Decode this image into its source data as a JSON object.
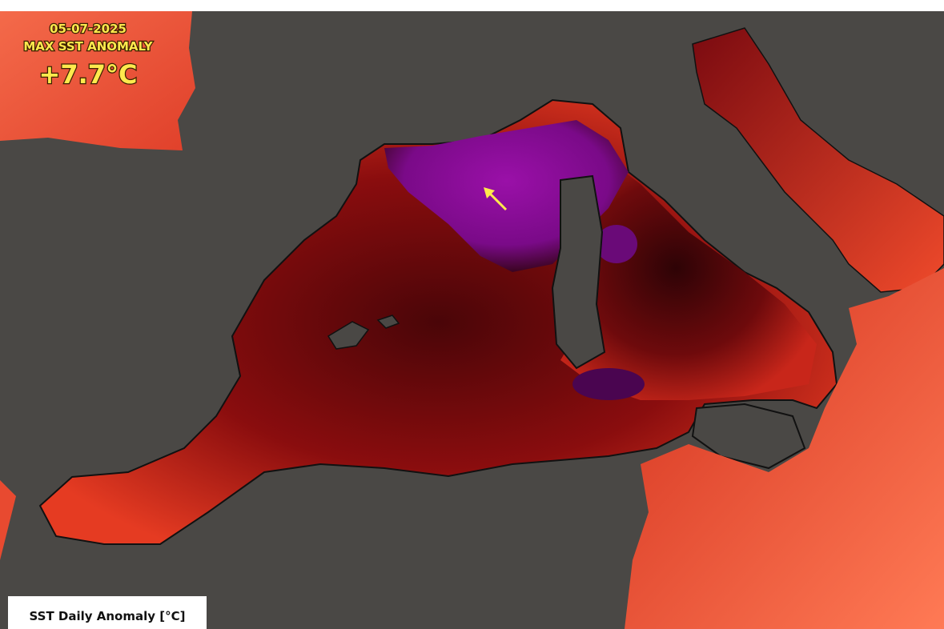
{
  "header": {
    "date": "05-07-2025",
    "title": "MAX SST ANOMALY",
    "max_anomaly": "+7.7°C"
  },
  "legend": {
    "title": "SST Daily Anomaly [°C]"
  }
}
